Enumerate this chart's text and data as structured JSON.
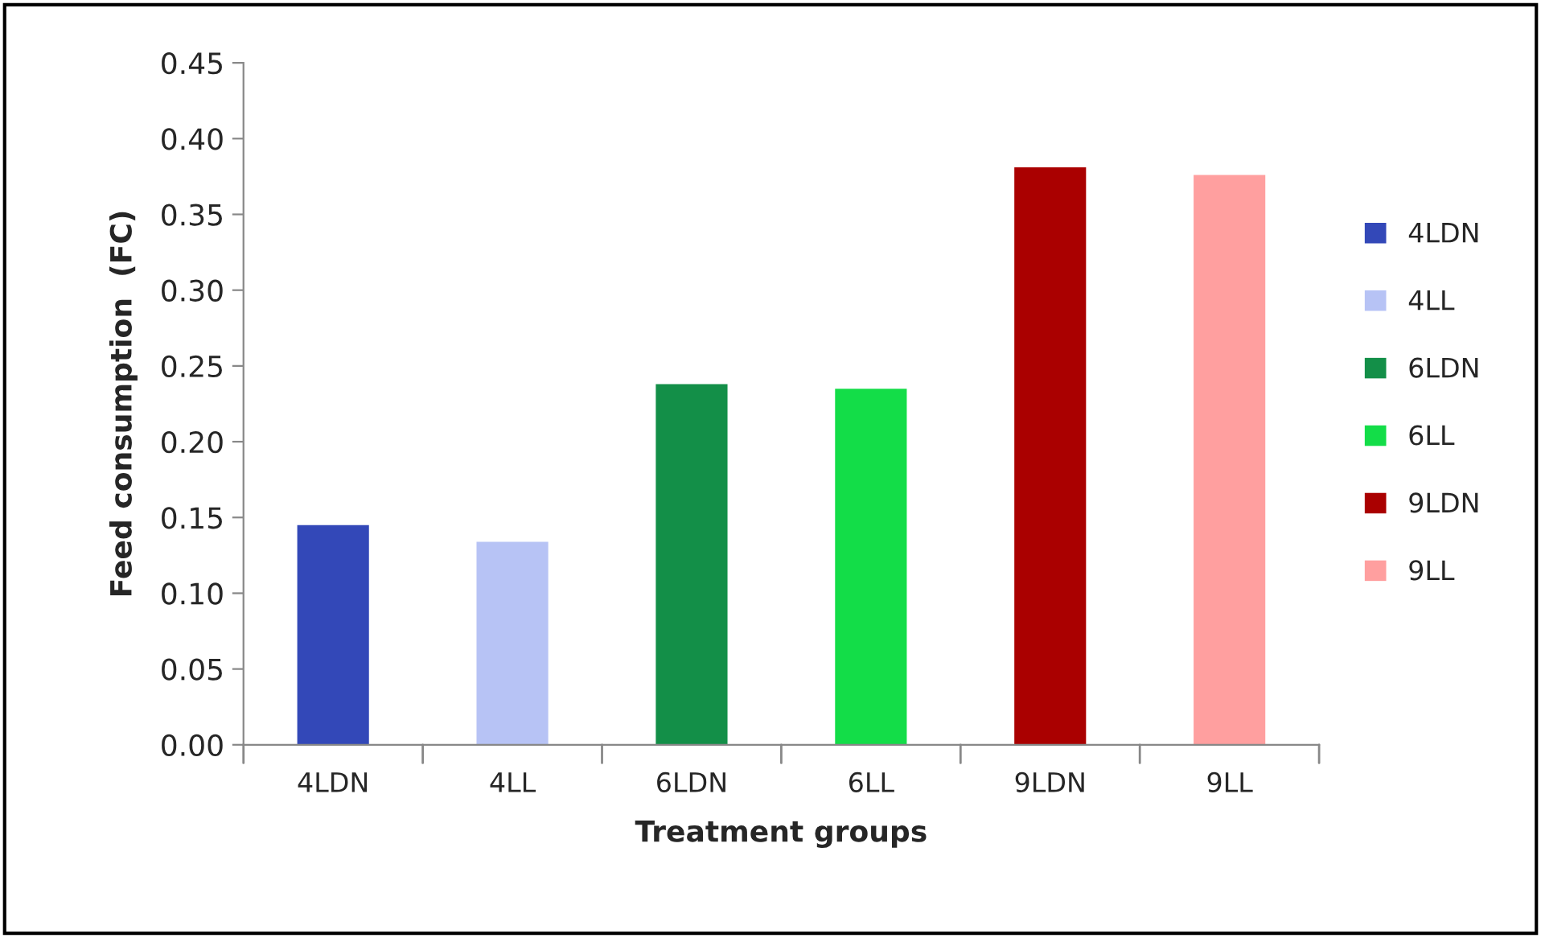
{
  "chart_data": {
    "type": "bar",
    "xlabel": "Treatment groups",
    "ylabel": "Feed consumption  (FC)",
    "categories": [
      "4LDN",
      "4LL",
      "6LDN",
      "6LL",
      "9LDN",
      "9LL"
    ],
    "series": [
      {
        "name": "4LDN",
        "color": "#3348b8",
        "values": [
          0.145,
          null,
          null,
          null,
          null,
          null
        ]
      },
      {
        "name": "4LL",
        "color": "#b7c3f5",
        "values": [
          null,
          0.134,
          null,
          null,
          null,
          null
        ]
      },
      {
        "name": "6LDN",
        "color": "#138f48",
        "values": [
          null,
          null,
          0.238,
          null,
          null,
          null
        ]
      },
      {
        "name": "6LL",
        "color": "#13dd48",
        "values": [
          null,
          null,
          null,
          0.235,
          null,
          null
        ]
      },
      {
        "name": "9LDN",
        "color": "#aa0000",
        "values": [
          null,
          null,
          null,
          null,
          0.381,
          null
        ]
      },
      {
        "name": "9LL",
        "color": "#ff9f9f",
        "values": [
          null,
          null,
          null,
          null,
          null,
          0.376
        ]
      }
    ],
    "ylim": [
      0,
      0.45
    ],
    "yticks": [
      {
        "value": 0,
        "label": "0.00"
      },
      {
        "value": 0.05,
        "label": "0.05"
      },
      {
        "value": 0.1,
        "label": "0.10"
      },
      {
        "value": 0.15,
        "label": "0.15"
      },
      {
        "value": 0.2,
        "label": "0.20"
      },
      {
        "value": 0.25,
        "label": "0.25"
      },
      {
        "value": 0.3,
        "label": "0.30"
      },
      {
        "value": 0.35,
        "label": "0.35"
      },
      {
        "value": 0.4,
        "label": "0.40"
      },
      {
        "value": 0.45,
        "label": "0.45"
      }
    ],
    "grid": false,
    "legend": "right"
  }
}
